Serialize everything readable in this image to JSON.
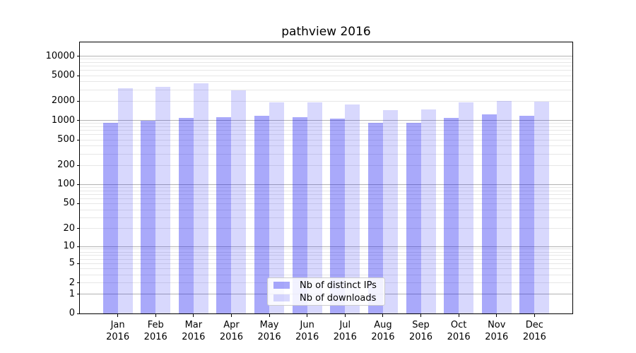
{
  "chart_data": {
    "type": "bar",
    "title": "pathview 2016",
    "categories": [
      "Jan",
      "Feb",
      "Mar",
      "Apr",
      "May",
      "Jun",
      "Jul",
      "Aug",
      "Sep",
      "Oct",
      "Nov",
      "Dec"
    ],
    "year_label": "2016",
    "series": [
      {
        "name": "Nb of distinct IPs",
        "color": "rgba(10,10,240,0.35)",
        "values": [
          910,
          990,
          1110,
          1130,
          1170,
          1120,
          1060,
          930,
          910,
          1090,
          1250,
          1170
        ]
      },
      {
        "name": "Nb of downloads",
        "color": "rgba(10,10,240,0.16)",
        "values": [
          3200,
          3300,
          3800,
          2960,
          1910,
          1930,
          1760,
          1460,
          1500,
          1900,
          2000,
          1960
        ]
      }
    ],
    "xlabel": "",
    "ylabel": "",
    "yscale": "log10(1+x)",
    "ylim": [
      0,
      16000
    ],
    "ytick_values": [
      0,
      1,
      2,
      5,
      10,
      20,
      50,
      100,
      200,
      500,
      1000,
      2000,
      5000,
      10000
    ],
    "ytick_labels": [
      "0",
      "1",
      "2",
      "5",
      "10",
      "20",
      "50",
      "100",
      "200",
      "500",
      "1000",
      "2000",
      "5000",
      "10000"
    ],
    "grid": {
      "major_decades": [
        1,
        10,
        100,
        1000,
        10000
      ],
      "major_color": "#b3b3b3",
      "minor_color": "#e7e7e7",
      "visible": "both"
    },
    "legend": {
      "position": "lower-center"
    },
    "frame_color": "#000000",
    "background": "#ffffff"
  }
}
